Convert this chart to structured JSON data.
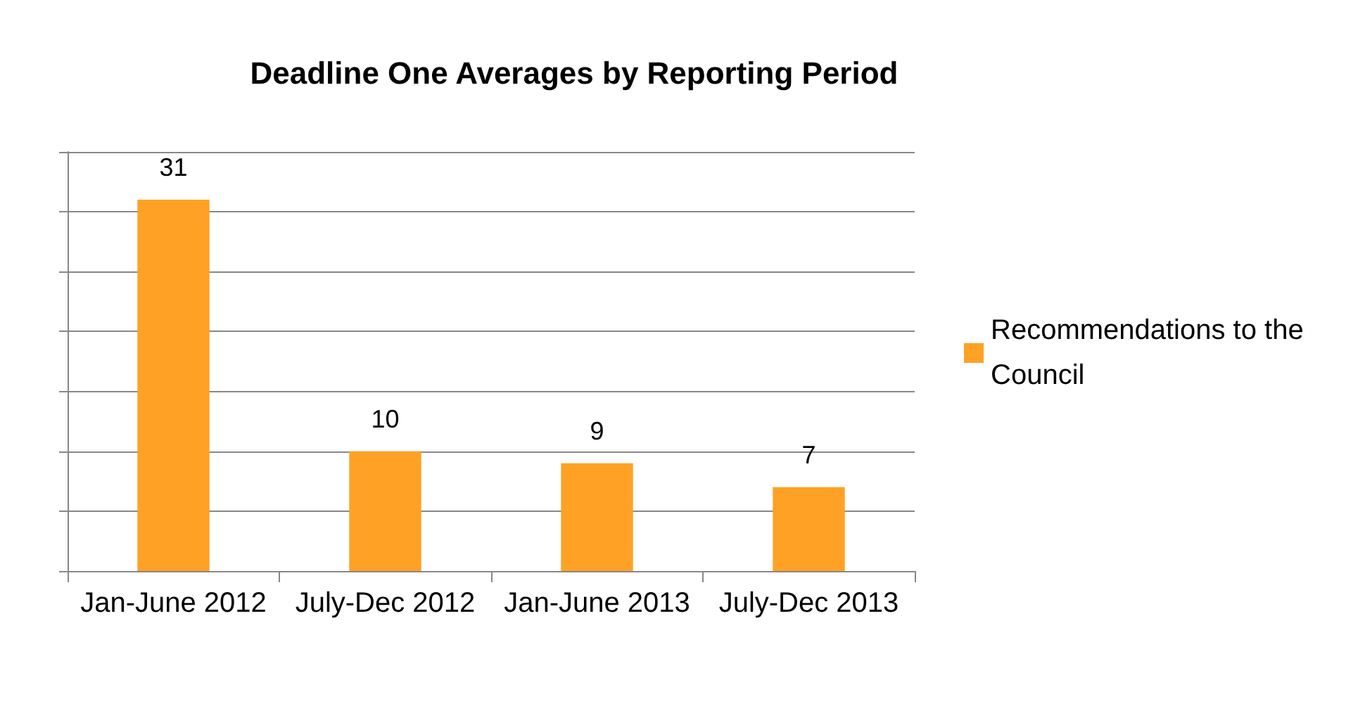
{
  "chart_data": {
    "type": "bar",
    "title": "Deadline One Averages by Reporting Period",
    "categories": [
      "Jan-June 2012",
      "July-Dec 2012",
      "Jan-June 2013",
      "July-Dec 2013"
    ],
    "series": [
      {
        "name": "Recommendations to the Council",
        "color": "#ffa124",
        "values": [
          31,
          10,
          9,
          7
        ]
      }
    ],
    "ylim": [
      0,
      35
    ],
    "yticks": [
      {
        "value": 0,
        "label": null
      },
      {
        "value": 5,
        "label": null
      },
      {
        "value": 10,
        "label": null
      },
      {
        "value": 15,
        "label": null
      },
      {
        "value": 20,
        "label": null
      },
      {
        "value": 25,
        "label": null
      },
      {
        "value": 30,
        "label": null
      },
      {
        "value": 35,
        "label": null
      }
    ],
    "tick_labels": "x",
    "grid": "y",
    "legend": "right",
    "data_labels": true
  }
}
